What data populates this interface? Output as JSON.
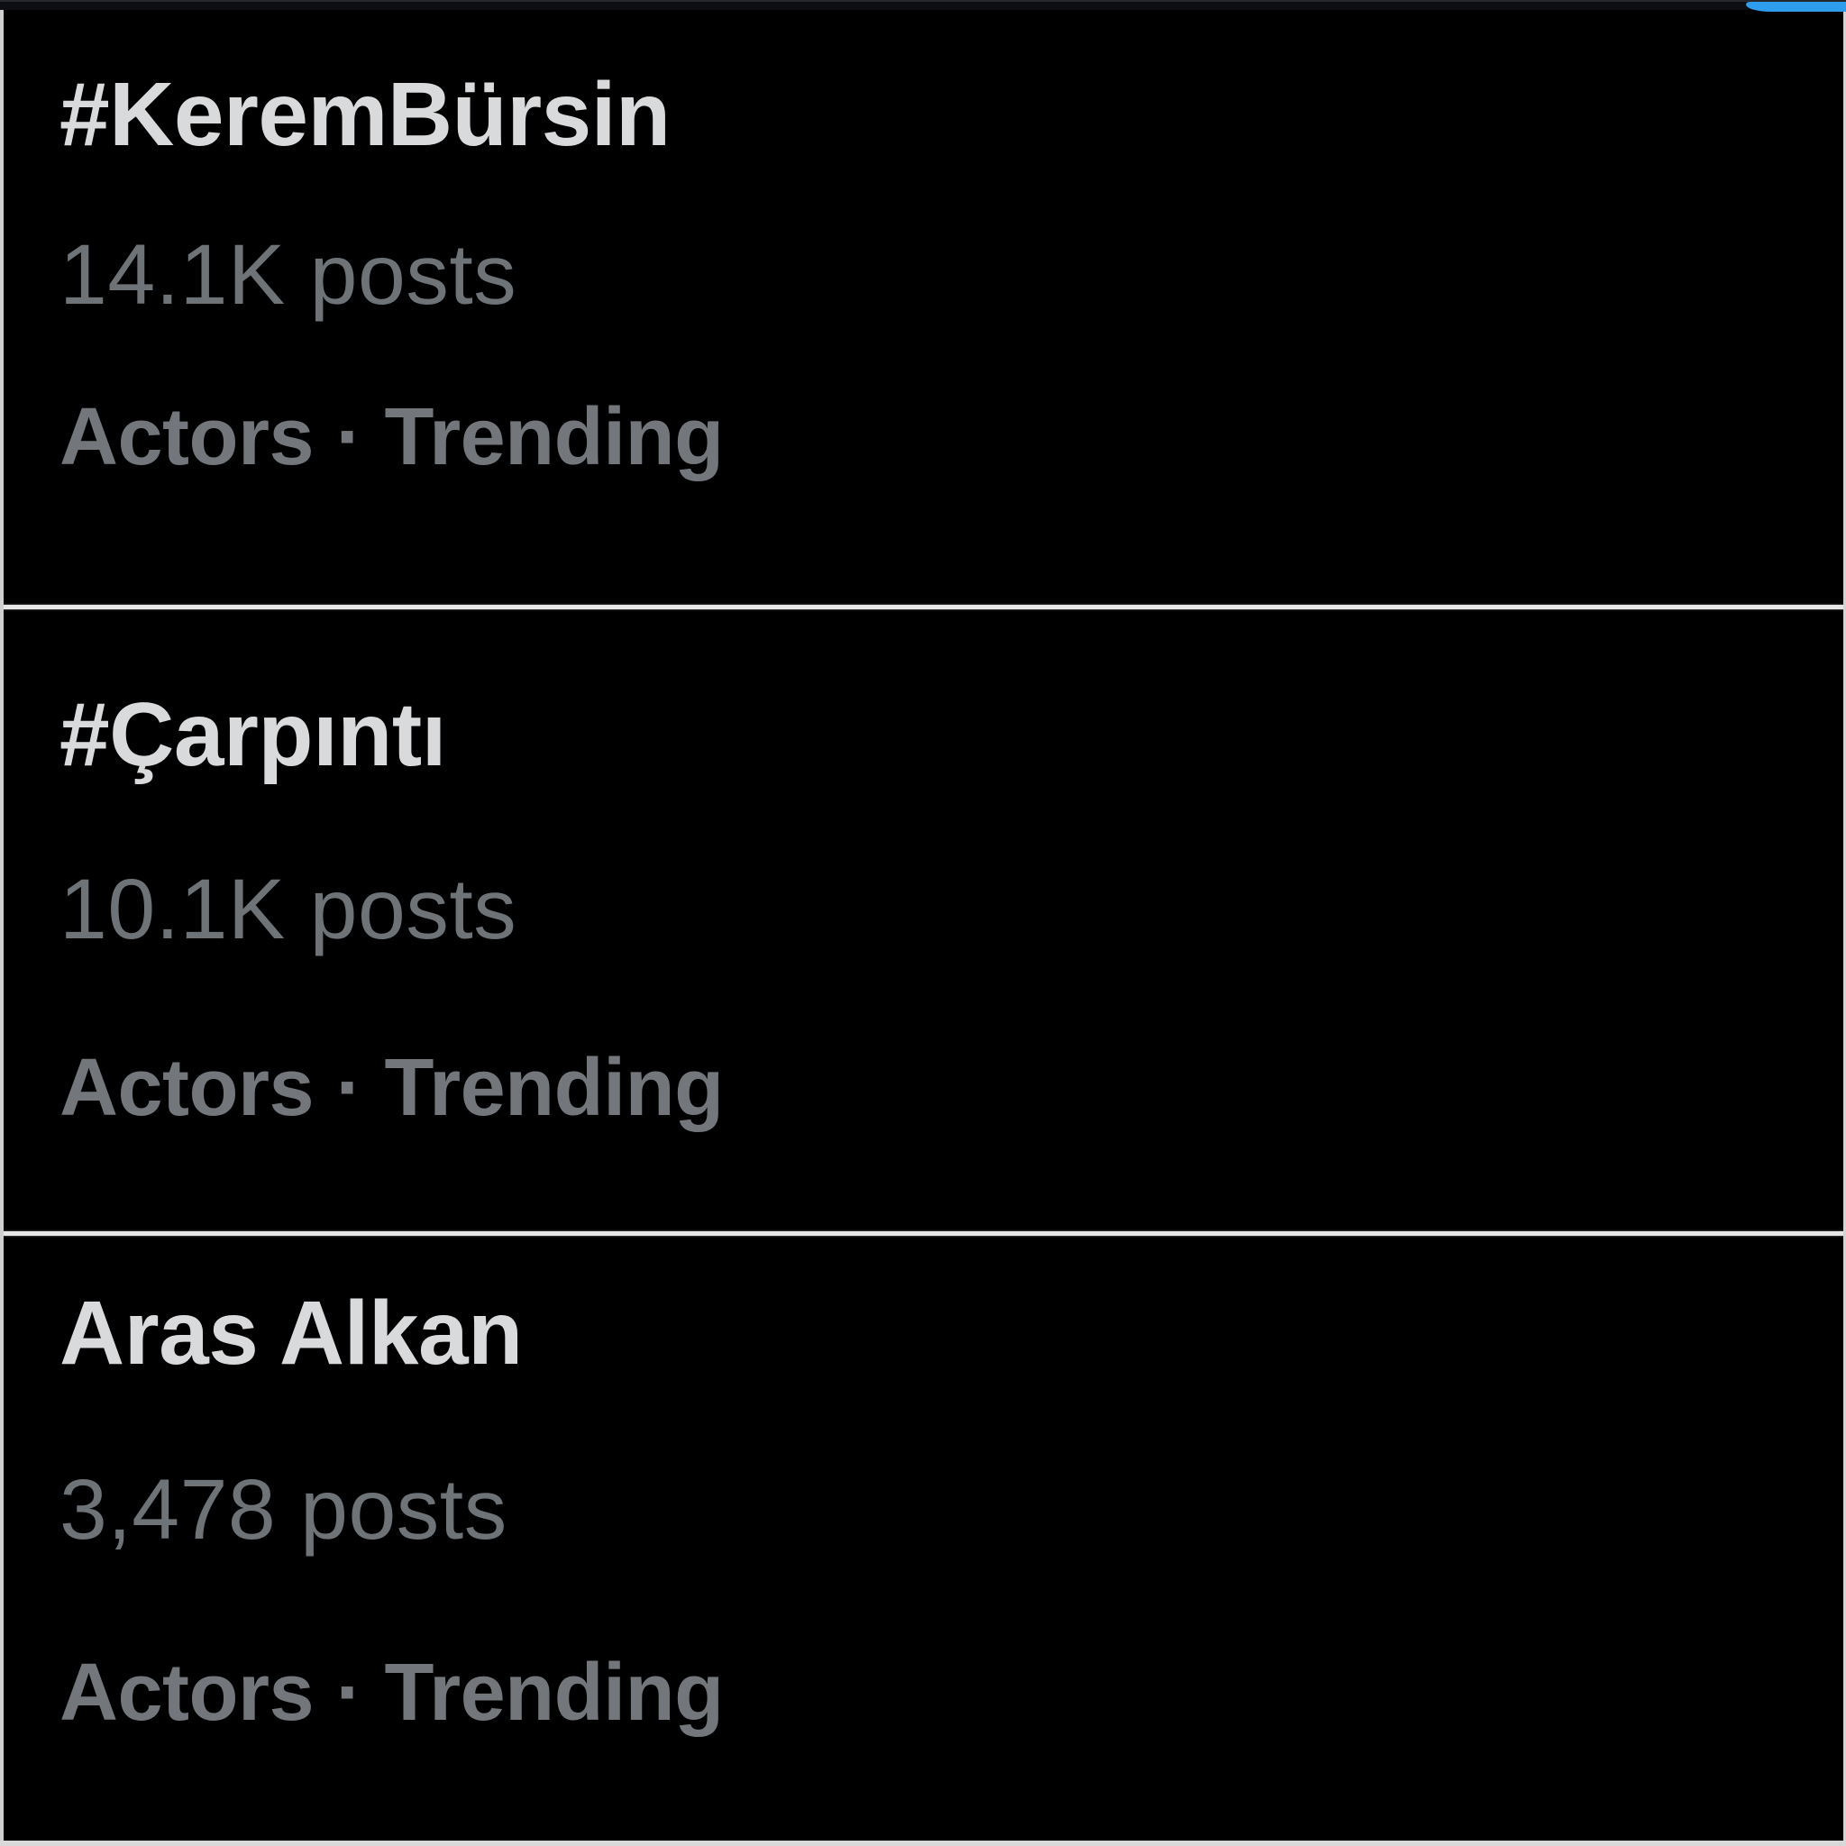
{
  "app": {
    "context": "trending-list-dark-mode",
    "background_color": "#000000",
    "frame_border_color": "#d9d9d9",
    "topbar_color": "#0c0e11",
    "scroll_indicator_color": "#2f9ded",
    "title_text_color": "#d9dadc",
    "secondary_text_color": "#71767b"
  },
  "trends": [
    {
      "title": "#KeremBürsin",
      "posts": "14.1K posts",
      "category": "Actors · Trending"
    },
    {
      "title": "#Çarpıntı",
      "posts": "10.1K posts",
      "category": "Actors · Trending"
    },
    {
      "title": "Aras Alkan",
      "posts": "3,478 posts",
      "category": "Actors · Trending"
    }
  ]
}
